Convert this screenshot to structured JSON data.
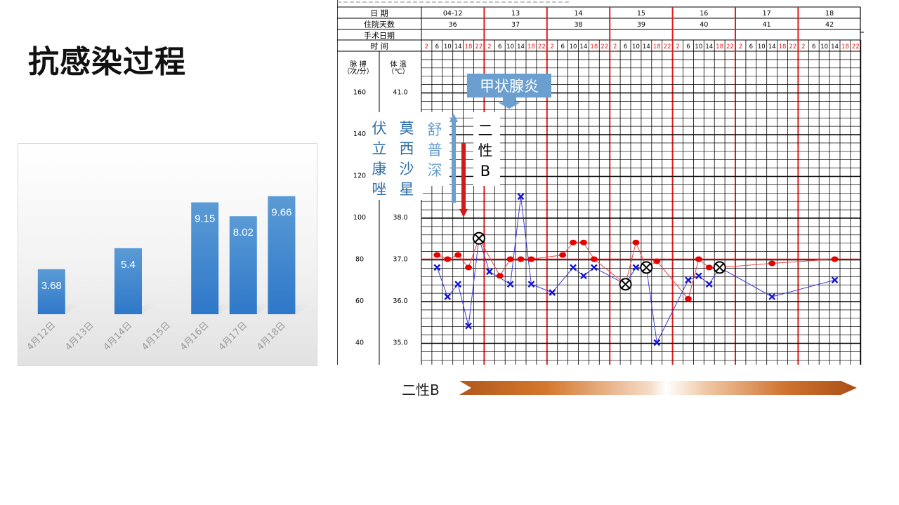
{
  "slide": {
    "title": "抗感染过程"
  },
  "treatment_bar": {
    "label": "二性B"
  },
  "colors": {
    "bar": "#3d85c6",
    "temperature": "#e01010",
    "pulse": "#1b1bd0",
    "grid": "#000000",
    "day_line": "#e51c1c",
    "callout_bg": "#6a9fd0"
  },
  "chart_data": [
    {
      "type": "bar",
      "categories": [
        "4月12日",
        "4月13日",
        "4月14日",
        "4月15日",
        "4月16日",
        "4月17日",
        "4月18日"
      ],
      "values": [
        3.68,
        null,
        5.4,
        null,
        9.15,
        8.02,
        9.66
      ],
      "value_labels": [
        "3.68",
        "",
        "5.4",
        "",
        "9.15",
        "8.02",
        "9.66"
      ],
      "ylim": [
        0,
        10.5
      ],
      "grid": false
    },
    {
      "type": "line",
      "header": {
        "rows": [
          "日      期",
          "住院天数",
          "手术日期",
          "时      间"
        ],
        "dates": [
          "04-12",
          "13",
          "14",
          "15",
          "16",
          "17",
          "18"
        ],
        "hospital_days": [
          "36",
          "37",
          "38",
          "39",
          "40",
          "41",
          "42"
        ],
        "times": [
          "2",
          "6",
          "10",
          "14",
          "18",
          "22"
        ]
      },
      "axes": {
        "pulse_title": "脉  搏\n（次/分）",
        "temp_title": "体  温\n（℃）",
        "pulse_ticks": [
          "160",
          "140",
          "120",
          "100",
          "80",
          "60",
          "40"
        ],
        "temp_ticks": [
          "41.0",
          "",
          "",
          "38.0",
          "37.0",
          "36.0",
          "35.0"
        ]
      },
      "temperature": [
        {
          "day": 0,
          "slot": 1,
          "value": 37.1
        },
        {
          "day": 0,
          "slot": 2,
          "value": 37.0
        },
        {
          "day": 0,
          "slot": 3,
          "value": 37.1
        },
        {
          "day": 0,
          "slot": 4,
          "value": 36.8
        },
        {
          "day": 0,
          "slot": 5,
          "value": 37.5
        },
        {
          "day": 1,
          "slot": 1,
          "value": 36.6
        },
        {
          "day": 1,
          "slot": 2,
          "value": 37.0
        },
        {
          "day": 1,
          "slot": 3,
          "value": 37.0
        },
        {
          "day": 1,
          "slot": 4,
          "value": 37.0
        },
        {
          "day": 2,
          "slot": 1,
          "value": 37.1
        },
        {
          "day": 2,
          "slot": 2,
          "value": 37.4
        },
        {
          "day": 2,
          "slot": 3,
          "value": 37.4
        },
        {
          "day": 2,
          "slot": 4,
          "value": 37.0
        },
        {
          "day": 3,
          "slot": 1,
          "value": 36.4
        },
        {
          "day": 3,
          "slot": 2,
          "value": 37.4
        },
        {
          "day": 3,
          "slot": 3,
          "value": 36.8
        },
        {
          "day": 3,
          "slot": 4,
          "value": 36.95
        },
        {
          "day": 4,
          "slot": 1,
          "value": 36.05
        },
        {
          "day": 4,
          "slot": 2,
          "value": 37.0
        },
        {
          "day": 4,
          "slot": 3,
          "value": 36.8
        },
        {
          "day": 4,
          "slot": 4,
          "value": 36.8
        },
        {
          "day": 5,
          "slot": 3,
          "value": 36.9
        },
        {
          "day": 6,
          "slot": 3,
          "value": 37.0
        }
      ],
      "pulse": [
        {
          "day": 0,
          "slot": 1,
          "value": 76
        },
        {
          "day": 0,
          "slot": 2,
          "value": 62
        },
        {
          "day": 0,
          "slot": 3,
          "value": 68
        },
        {
          "day": 0,
          "slot": 4,
          "value": 48
        },
        {
          "day": 0,
          "slot": 5,
          "value": 90
        },
        {
          "day": 1,
          "slot": 0,
          "value": 74
        },
        {
          "day": 1,
          "slot": 2,
          "value": 68
        },
        {
          "day": 1,
          "slot": 3,
          "value": 110
        },
        {
          "day": 1,
          "slot": 4,
          "value": 68
        },
        {
          "day": 2,
          "slot": 0,
          "value": 64
        },
        {
          "day": 2,
          "slot": 2,
          "value": 76
        },
        {
          "day": 2,
          "slot": 3,
          "value": 72
        },
        {
          "day": 2,
          "slot": 4,
          "value": 76
        },
        {
          "day": 3,
          "slot": 1,
          "value": 68
        },
        {
          "day": 3,
          "slot": 2,
          "value": 76
        },
        {
          "day": 3,
          "slot": 3,
          "value": 76
        },
        {
          "day": 3,
          "slot": 4,
          "value": 40
        },
        {
          "day": 4,
          "slot": 1,
          "value": 70
        },
        {
          "day": 4,
          "slot": 2,
          "value": 72
        },
        {
          "day": 4,
          "slot": 3,
          "value": 68
        },
        {
          "day": 4,
          "slot": 4,
          "value": 76
        },
        {
          "day": 5,
          "slot": 3,
          "value": 62
        },
        {
          "day": 6,
          "slot": 3,
          "value": 70
        }
      ],
      "coincident_points": [
        {
          "day": 0,
          "slot": 5,
          "value": 90
        },
        {
          "day": 3,
          "slot": 1,
          "value": 68
        },
        {
          "day": 3,
          "slot": 3,
          "value": 76
        },
        {
          "day": 4,
          "slot": 4,
          "value": 76
        }
      ],
      "annotations": {
        "thyroiditis": "甲状腺炎",
        "voriconazole": "伏立康唑",
        "moxifloxacin": "莫西沙星",
        "sulperazone": "舒普深",
        "amphotericin": "二性B"
      }
    }
  ]
}
